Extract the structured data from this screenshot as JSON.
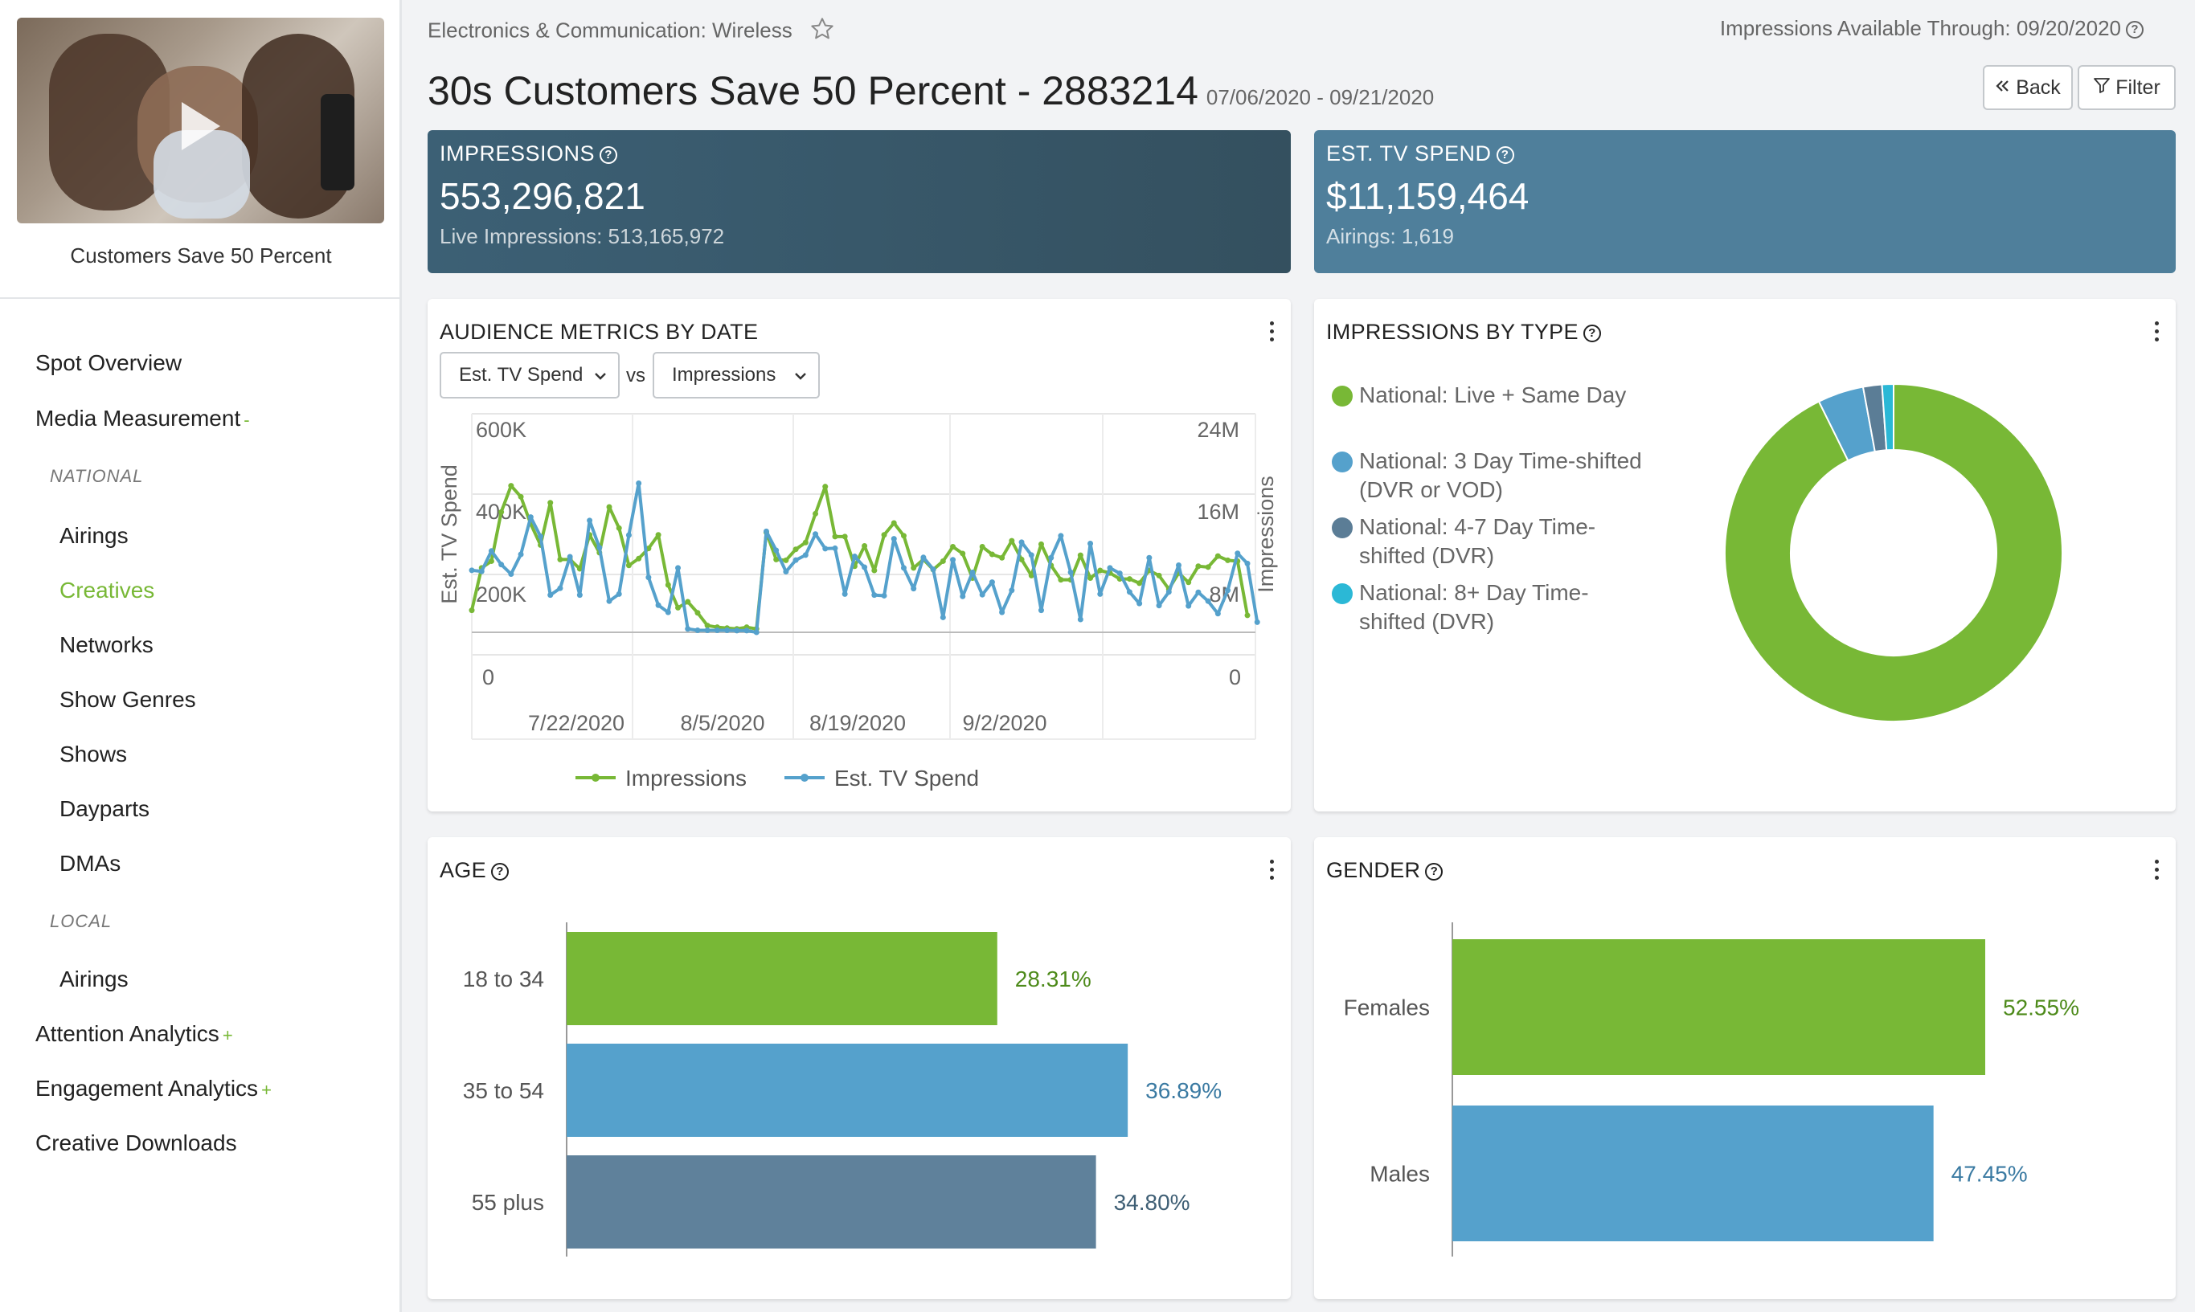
{
  "sidebar": {
    "creative_caption": "Customers Save 50 Percent",
    "items": [
      {
        "label": "Spot Overview"
      },
      {
        "label": "Media Measurement",
        "sign": "-"
      },
      {
        "label": "NATIONAL"
      },
      {
        "label": "Airings"
      },
      {
        "label": "Creatives"
      },
      {
        "label": "Networks"
      },
      {
        "label": "Show Genres"
      },
      {
        "label": "Shows"
      },
      {
        "label": "Dayparts"
      },
      {
        "label": "DMAs"
      },
      {
        "label": "LOCAL"
      },
      {
        "label": "Airings"
      },
      {
        "label": "Attention Analytics",
        "sign": "+"
      },
      {
        "label": "Engagement Analytics",
        "sign": "+"
      },
      {
        "label": "Creative Downloads"
      }
    ]
  },
  "header": {
    "breadcrumb": "Electronics & Communication: Wireless",
    "availability": "Impressions Available Through: 09/20/2020",
    "title": "30s Customers Save 50 Percent - 2883214",
    "date_range": "07/06/2020 - 09/21/2020",
    "back_label": "Back",
    "filter_label": "Filter"
  },
  "kpis": {
    "impressions": {
      "label": "IMPRESSIONS",
      "value": "553,296,821",
      "sub": "Live Impressions: 513,165,972"
    },
    "spend": {
      "label": "EST. TV SPEND",
      "value": "$11,159,464",
      "sub": "Airings: 1,619"
    }
  },
  "metrics_panel": {
    "title": "AUDIENCE METRICS BY DATE",
    "select_a": "Est. TV Spend",
    "vs": "vs",
    "select_b": "Impressions"
  },
  "type_panel": {
    "title": "IMPRESSIONS BY TYPE",
    "legend": [
      {
        "label": "National: Live + Same Day",
        "color": "#78b836"
      },
      {
        "label": "National: 3 Day Time-shifted (DVR or VOD)",
        "color": "#55a1cc"
      },
      {
        "label": "National: 4-7 Day Time-shifted (DVR)",
        "color": "#5b7d96"
      },
      {
        "label": "National: 8+ Day Time-shifted (DVR)",
        "color": "#2bb8d6"
      }
    ]
  },
  "age_panel": {
    "title": "AGE"
  },
  "gender_panel": {
    "title": "GENDER"
  },
  "colors": {
    "green": "#78b836",
    "blue": "#55a1cc",
    "slate": "#5f819b",
    "cyan": "#2bb8d6"
  },
  "chart_data": [
    {
      "type": "line",
      "title": "AUDIENCE METRICS BY DATE",
      "ylabel": "Est. TV Spend",
      "y2label": "Impressions",
      "y_ticks": [
        "600K",
        "400K",
        "200K",
        "0"
      ],
      "y2_ticks": [
        "24M",
        "16M",
        "8M",
        "0"
      ],
      "ylim": [
        0,
        600000
      ],
      "y2lim": [
        0,
        24000000
      ],
      "x_ticks": [
        "7/22/2020",
        "8/5/2020",
        "8/19/2020",
        "9/2/2020"
      ],
      "x_range": [
        "7/6/2020",
        "9/21/2020"
      ],
      "legend": [
        "Impressions",
        "Est. TV Spend"
      ],
      "series": [
        {
          "name": "Impressions",
          "color": "#78b836",
          "axis": "right",
          "values": [
            2.6,
            7.6,
            8.4,
            14.2,
            17.3,
            16.0,
            12.8,
            10.3,
            15.3,
            8.6,
            8.6,
            7.5,
            11.5,
            9.4,
            14.8,
            12.3,
            7.9,
            8.7,
            9.9,
            11.5,
            5.6,
            2.9,
            3.6,
            2.3,
            0.8,
            0.6,
            0.5,
            0.4,
            0.6,
            0.4,
            11.8,
            8.6,
            8.5,
            9.8,
            10.6,
            14.0,
            17.2,
            11.3,
            11.3,
            7.8,
            10.2,
            7.3,
            11.5,
            12.9,
            11.4,
            7.6,
            8.6,
            7.4,
            8.4,
            10.1,
            9.3,
            6.4,
            10.1,
            9.2,
            8.8,
            10.8,
            8.6,
            6.7,
            10.4,
            7.9,
            6.2,
            6.2,
            9.1,
            6.4,
            7.3,
            7.0,
            6.3,
            6.3,
            5.8,
            7.3,
            6.7,
            5.1,
            7.0,
            5.9,
            7.8,
            7.7,
            9.0,
            8.5,
            8.4,
            2.0
          ]
        },
        {
          "name": "Est. TV Spend",
          "color": "#55a1cc",
          "axis": "left",
          "values": [
            183000,
            180000,
            240000,
            200000,
            172000,
            230000,
            340000,
            283000,
            110000,
            130000,
            223000,
            110000,
            330000,
            250000,
            92000,
            113000,
            287000,
            440000,
            162000,
            80000,
            59000,
            190000,
            10000,
            6000,
            6000,
            6000,
            6000,
            5000,
            5000,
            0,
            298000,
            242000,
            179000,
            213000,
            228000,
            290000,
            247000,
            248000,
            113000,
            224000,
            192000,
            110000,
            108000,
            276000,
            190000,
            129000,
            221000,
            186000,
            44000,
            214000,
            106000,
            177000,
            111000,
            148000,
            59000,
            124000,
            266000,
            228000,
            65000,
            220000,
            285000,
            177000,
            38000,
            262000,
            113000,
            190000,
            174000,
            119000,
            85000,
            220000,
            79000,
            119000,
            198000,
            78000,
            118000,
            92000,
            55000,
            124000,
            233000,
            203000,
            30000
          ]
        }
      ]
    },
    {
      "type": "pie",
      "title": "IMPRESSIONS BY TYPE",
      "categories": [
        "National: Live + Same Day",
        "National: 3 Day Time-shifted (DVR or VOD)",
        "National: 4-7 Day Time-shifted (DVR)",
        "National: 8+ Day Time-shifted (DVR)"
      ],
      "values": [
        92.7,
        4.4,
        1.8,
        1.1
      ]
    },
    {
      "type": "bar",
      "title": "AGE",
      "orientation": "horizontal",
      "categories": [
        "18 to 34",
        "35 to 54",
        "55 plus"
      ],
      "values": [
        28.31,
        36.89,
        34.8
      ],
      "labels": [
        "28.31%",
        "36.89%",
        "34.80%"
      ],
      "colors": [
        "#78b836",
        "#55a1cc",
        "#5f819b"
      ],
      "xlim": [
        0,
        40
      ]
    },
    {
      "type": "bar",
      "title": "GENDER",
      "orientation": "horizontal",
      "categories": [
        "Females",
        "Males"
      ],
      "values": [
        52.55,
        47.45
      ],
      "labels": [
        "52.55%",
        "47.45%"
      ],
      "colors": [
        "#78b836",
        "#55a1cc"
      ],
      "xlim": [
        0,
        60
      ]
    }
  ]
}
